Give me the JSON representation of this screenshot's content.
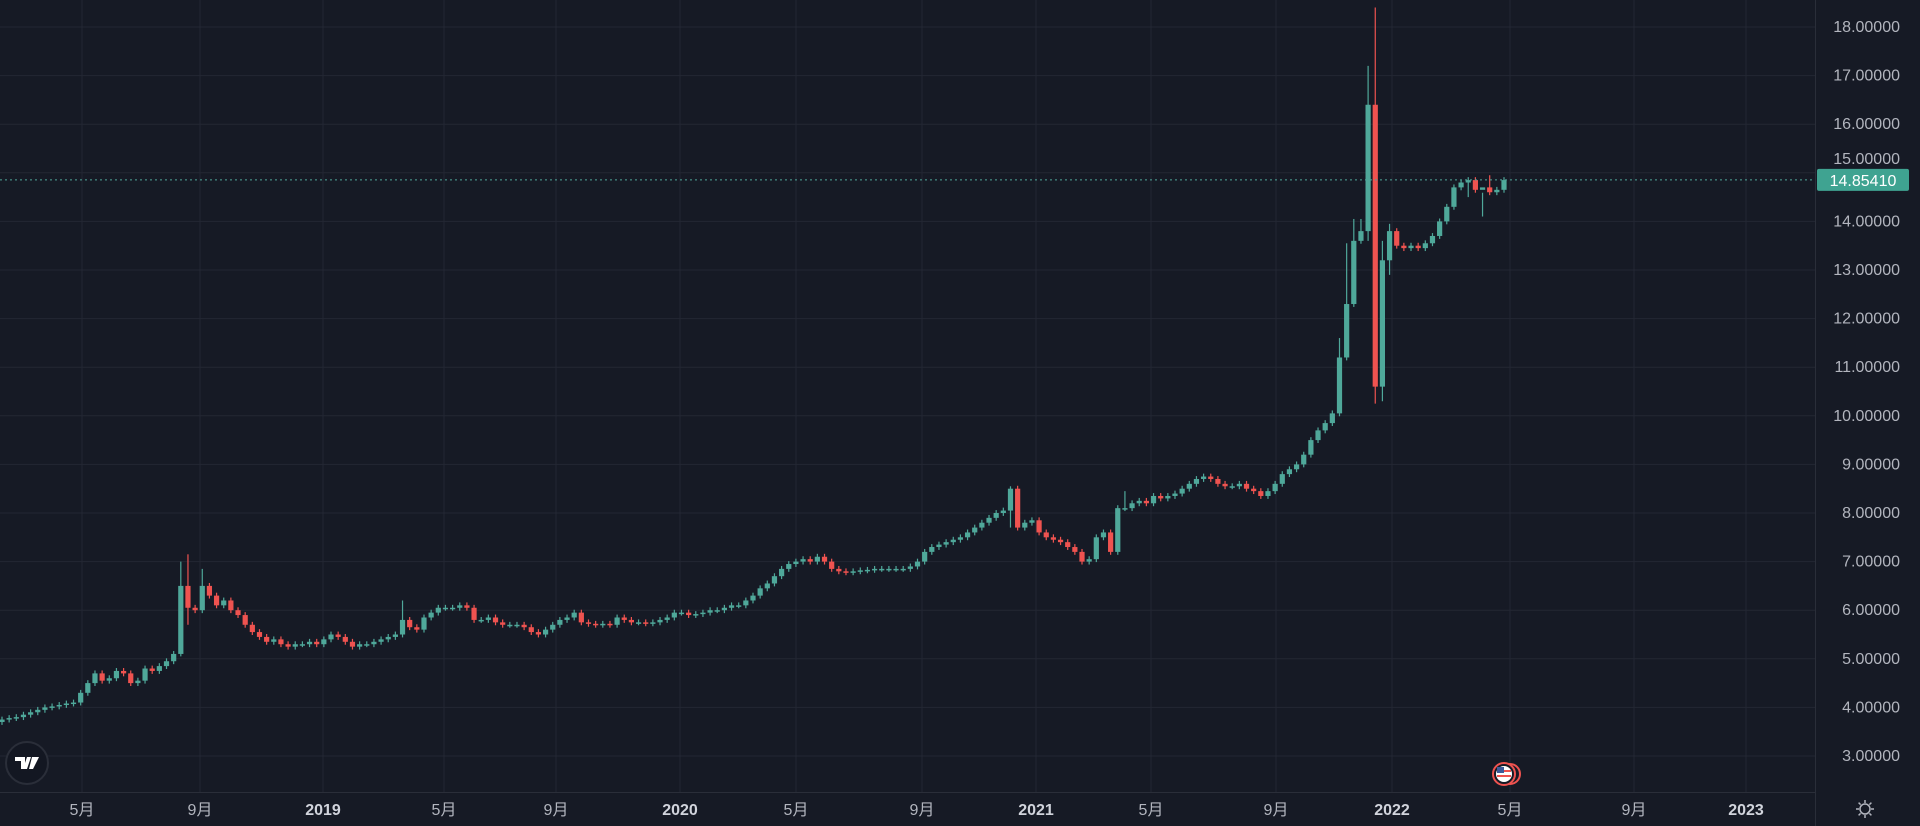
{
  "chart_data": {
    "type": "candlestick",
    "ylim": [
      2.3,
      18.6
    ],
    "y_ticks": [
      "18.00000",
      "17.00000",
      "16.00000",
      "15.00000",
      "14.00000",
      "13.00000",
      "12.00000",
      "11.00000",
      "10.00000",
      "9.00000",
      "8.00000",
      "7.00000",
      "6.00000",
      "5.00000",
      "4.00000",
      "3.00000"
    ],
    "y_tick_values": [
      18,
      17,
      16,
      15,
      14,
      13,
      12,
      11,
      10,
      9,
      8,
      7,
      6,
      5,
      4,
      3
    ],
    "x_ticks": [
      {
        "label": "5月",
        "year": false
      },
      {
        "label": "9月",
        "year": false
      },
      {
        "label": "2019",
        "year": true
      },
      {
        "label": "5月",
        "year": false
      },
      {
        "label": "9月",
        "year": false
      },
      {
        "label": "2020",
        "year": true
      },
      {
        "label": "5月",
        "year": false
      },
      {
        "label": "9月",
        "year": false
      },
      {
        "label": "2021",
        "year": true
      },
      {
        "label": "5月",
        "year": false
      },
      {
        "label": "9月",
        "year": false
      },
      {
        "label": "2022",
        "year": true
      },
      {
        "label": "5月",
        "year": false
      },
      {
        "label": "9月",
        "year": false
      },
      {
        "label": "2023",
        "year": true
      }
    ],
    "first_open": 3.7,
    "closes": [
      3.75,
      3.78,
      3.8,
      3.85,
      3.9,
      3.95,
      4.0,
      4.02,
      4.05,
      4.08,
      4.1,
      4.3,
      4.5,
      4.7,
      4.55,
      4.6,
      4.75,
      4.7,
      4.5,
      4.55,
      4.8,
      4.75,
      4.85,
      4.95,
      5.1,
      6.5,
      6.05,
      6.0,
      6.5,
      6.3,
      6.1,
      6.2,
      6.0,
      5.9,
      5.7,
      5.55,
      5.45,
      5.35,
      5.4,
      5.3,
      5.25,
      5.3,
      5.3,
      5.35,
      5.3,
      5.4,
      5.5,
      5.45,
      5.35,
      5.25,
      5.3,
      5.3,
      5.35,
      5.4,
      5.45,
      5.5,
      5.8,
      5.65,
      5.6,
      5.85,
      5.95,
      6.05,
      6.05,
      6.05,
      6.1,
      6.05,
      5.8,
      5.8,
      5.85,
      5.75,
      5.7,
      5.7,
      5.7,
      5.65,
      5.55,
      5.5,
      5.6,
      5.7,
      5.8,
      5.85,
      5.95,
      5.75,
      5.72,
      5.7,
      5.72,
      5.7,
      5.85,
      5.8,
      5.75,
      5.75,
      5.73,
      5.75,
      5.8,
      5.85,
      5.95,
      5.95,
      5.9,
      5.92,
      5.95,
      6.0,
      6.0,
      6.05,
      6.1,
      6.1,
      6.2,
      6.3,
      6.45,
      6.55,
      6.7,
      6.85,
      6.95,
      7.0,
      7.05,
      7.0,
      7.1,
      7.0,
      6.85,
      6.8,
      6.78,
      6.8,
      6.82,
      6.83,
      6.85,
      6.85,
      6.85,
      6.85,
      6.85,
      6.9,
      7.0,
      7.2,
      7.3,
      7.35,
      7.4,
      7.45,
      7.5,
      7.6,
      7.7,
      7.8,
      7.9,
      8.0,
      8.05,
      8.5,
      7.7,
      7.8,
      7.85,
      7.6,
      7.5,
      7.45,
      7.4,
      7.3,
      7.2,
      7.0,
      7.05,
      7.5,
      7.6,
      7.2,
      8.1,
      8.1,
      8.2,
      8.25,
      8.2,
      8.35,
      8.3,
      8.35,
      8.4,
      8.5,
      8.6,
      8.7,
      8.75,
      8.7,
      8.6,
      8.55,
      8.55,
      8.6,
      8.5,
      8.45,
      8.35,
      8.45,
      8.6,
      8.8,
      8.9,
      9.0,
      9.2,
      9.5,
      9.7,
      9.85,
      10.05,
      11.2,
      12.3,
      13.6,
      13.8,
      16.4,
      10.6,
      13.2,
      13.8,
      13.5,
      13.45,
      13.5,
      13.45,
      13.55,
      13.7,
      14.0,
      14.3,
      14.7,
      14.8,
      14.85,
      14.65,
      14.7,
      14.6,
      14.65,
      14.85
    ],
    "wick_highs": {
      "25": 7.0,
      "26": 7.15,
      "28": 6.85,
      "56": 6.2,
      "141": 8.55,
      "157": 8.45,
      "187": 11.6,
      "188": 13.55,
      "189": 14.05,
      "190": 14.05,
      "191": 17.2,
      "192": 18.4,
      "193": 13.6,
      "194": 13.95,
      "207": 14.1,
      "208": 14.95
    },
    "wick_lows": {
      "25": 5.05,
      "26": 5.7,
      "141": 7.7,
      "191": 13.6,
      "192": 10.25,
      "193": 10.3,
      "194": 12.9,
      "205": 14.5
    },
    "last_price": "14.85410",
    "up_color": "#4fa89a",
    "down_color": "#ef5350",
    "background": "#161a25",
    "grid": true
  },
  "icons": {
    "logo": "tradingview-logo",
    "flag": "us-flag-event-icon",
    "settings": "gear-icon"
  }
}
